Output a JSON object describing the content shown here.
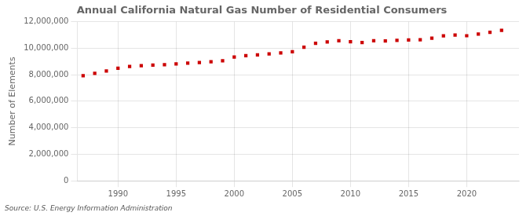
{
  "chart_data": {
    "type": "scatter",
    "title": "Annual California Natural Gas Number of Residential Consumers",
    "ylabel": "Number of Elements",
    "annotations": [
      "Source: U.S. Energy Information Administration"
    ],
    "color": "#cc0000",
    "marker": "square",
    "x": [
      1987,
      1988,
      1989,
      1990,
      1991,
      1992,
      1993,
      1994,
      1995,
      1996,
      1997,
      1998,
      1999,
      2000,
      2001,
      2002,
      2003,
      2004,
      2005,
      2006,
      2007,
      2008,
      2009,
      2010,
      2011,
      2012,
      2013,
      2014,
      2015,
      2016,
      2017,
      2018,
      2019,
      2020,
      2021,
      2022,
      2023
    ],
    "values": [
      7920000,
      8100000,
      8280000,
      8490000,
      8620000,
      8680000,
      8720000,
      8750000,
      8820000,
      8870000,
      8920000,
      8980000,
      9050000,
      9340000,
      9430000,
      9500000,
      9570000,
      9650000,
      9730000,
      10080000,
      10370000,
      10480000,
      10560000,
      10490000,
      10430000,
      10560000,
      10550000,
      10590000,
      10620000,
      10640000,
      10760000,
      10930000,
      10990000,
      10940000,
      11070000,
      11200000,
      11350000
    ],
    "xlim": [
      1986.5,
      2024.5
    ],
    "xticks": [
      1990,
      1995,
      2000,
      2005,
      2010,
      2015,
      2020
    ],
    "ylim": [
      0,
      12000000
    ],
    "yticks": [
      0,
      {
        "value": 2000000,
        "label": "2,000,000"
      },
      {
        "value": 4000000,
        "label": "4,000,000"
      },
      {
        "value": 6000000,
        "label": "6,000,000"
      },
      {
        "value": 8000000,
        "label": "8,000,000"
      },
      {
        "value": 10000000,
        "label": "10,000,000"
      },
      {
        "value": 12000000,
        "label": "12,000,000"
      }
    ],
    "grid": true
  }
}
